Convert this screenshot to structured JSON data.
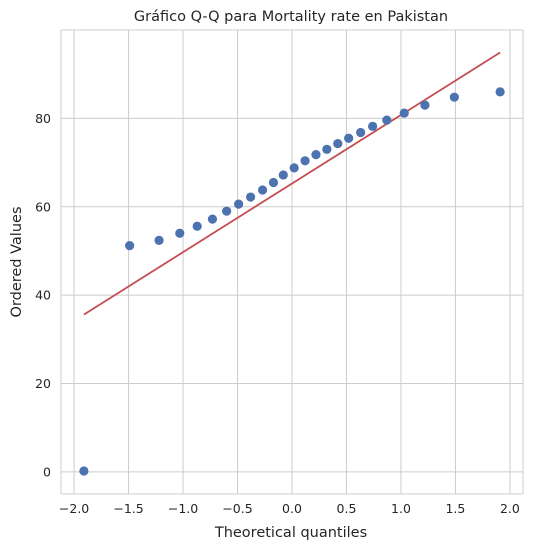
{
  "chart_data": {
    "type": "scatter",
    "title": "Gráfico Q-Q para Mortality rate en Pakistan",
    "xlabel": "Theoretical quantiles",
    "ylabel": "Ordered Values",
    "xlim": [
      -2.12,
      2.12
    ],
    "ylim": [
      -5,
      100
    ],
    "xticks": [
      -2.0,
      -1.5,
      -1.0,
      -0.5,
      0.0,
      0.5,
      1.0,
      1.5,
      2.0
    ],
    "xtick_labels": [
      "−2.0",
      "−1.5",
      "−1.0",
      "−0.5",
      "0.0",
      "0.5",
      "1.0",
      "1.5",
      "2.0"
    ],
    "yticks": [
      0,
      20,
      40,
      60,
      80
    ],
    "ytick_labels": [
      "0",
      "20",
      "40",
      "60",
      "80"
    ],
    "grid": true,
    "colors": {
      "points": "#4c72b0",
      "line": "#c44e52",
      "grid": "#cccccc",
      "frame": "#cccccc"
    },
    "points": {
      "x": [
        -1.91,
        -1.49,
        -1.22,
        -1.03,
        -0.87,
        -0.73,
        -0.6,
        -0.49,
        -0.38,
        -0.27,
        -0.17,
        -0.08,
        0.02,
        0.12,
        0.22,
        0.32,
        0.42,
        0.52,
        0.63,
        0.74,
        0.87,
        1.03,
        1.22,
        1.49,
        1.91
      ],
      "y": [
        0.2,
        51.2,
        52.4,
        54.0,
        55.6,
        57.2,
        59.0,
        60.6,
        62.2,
        63.8,
        65.5,
        67.2,
        68.8,
        70.4,
        71.8,
        73.0,
        74.3,
        75.5,
        76.8,
        78.2,
        79.6,
        81.2,
        83.0,
        84.8,
        86.0
      ]
    },
    "fit_line": {
      "x": [
        -1.91,
        1.91
      ],
      "y": [
        35.6,
        94.9
      ]
    }
  }
}
